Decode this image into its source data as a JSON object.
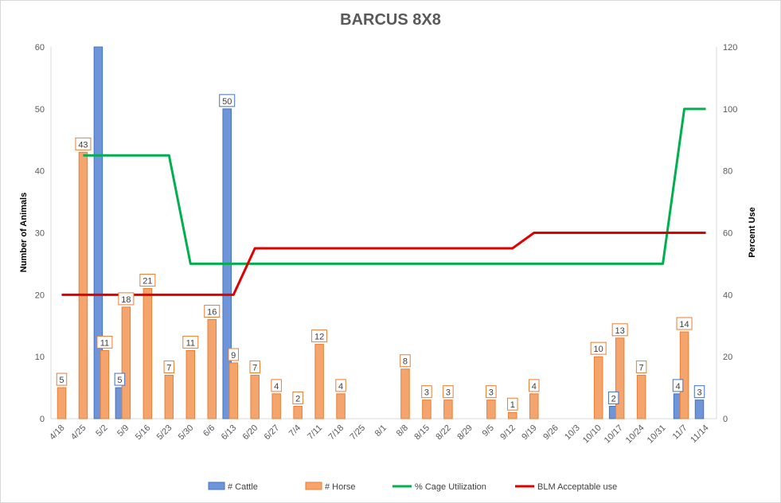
{
  "chart_data": {
    "type": "bar",
    "title": "BARCUS 8X8",
    "ylabel": "Number of Animals",
    "y2label": "Percent Use",
    "ylim": [
      0,
      60
    ],
    "y2lim": [
      0,
      120
    ],
    "yticks": [
      0,
      10,
      20,
      30,
      40,
      50,
      60
    ],
    "y2ticks": [
      0,
      20,
      40,
      60,
      80,
      100,
      120
    ],
    "grid": false,
    "legend_position": "bottom",
    "categories": [
      "4/18",
      "4/25",
      "5/2",
      "5/9",
      "5/16",
      "5/23",
      "5/30",
      "6/6",
      "6/13",
      "6/20",
      "6/27",
      "7/4",
      "7/11",
      "7/18",
      "7/25",
      "8/1",
      "8/8",
      "8/15",
      "8/22",
      "8/29",
      "9/5",
      "9/12",
      "9/19",
      "9/26",
      "10/3",
      "10/10",
      "10/17",
      "10/24",
      "10/31",
      "11/7",
      "11/14"
    ],
    "series": [
      {
        "name": "# Cattle",
        "type": "bar",
        "axis": "left",
        "color": "#4472c4",
        "values": [
          null,
          null,
          60,
          5,
          null,
          null,
          null,
          null,
          50,
          null,
          null,
          null,
          null,
          null,
          null,
          null,
          null,
          null,
          null,
          null,
          null,
          null,
          null,
          null,
          null,
          null,
          2,
          null,
          null,
          4,
          3
        ],
        "labels": [
          null,
          null,
          null,
          "5",
          null,
          null,
          null,
          null,
          "50",
          null,
          null,
          null,
          null,
          null,
          null,
          null,
          null,
          null,
          null,
          null,
          null,
          null,
          null,
          null,
          null,
          null,
          "2",
          null,
          null,
          "4",
          "3"
        ]
      },
      {
        "name": "# Horse",
        "type": "bar",
        "axis": "left",
        "color": "#ed7d31",
        "values": [
          5,
          43,
          11,
          18,
          21,
          7,
          11,
          16,
          9,
          7,
          4,
          2,
          12,
          4,
          null,
          null,
          8,
          3,
          3,
          null,
          3,
          1,
          4,
          null,
          null,
          10,
          13,
          7,
          null,
          14,
          null
        ],
        "labels": [
          "5",
          "43",
          "11",
          "18",
          "21",
          "7",
          "11",
          "16",
          "9",
          "7",
          "4",
          "2",
          "12",
          "4",
          null,
          null,
          "8",
          "3",
          "3",
          null,
          "3",
          "1",
          "4",
          null,
          null,
          "10",
          "13",
          "7",
          null,
          "14",
          null
        ]
      },
      {
        "name": "% Cage Utilization",
        "type": "line",
        "axis": "right",
        "color": "#00b050",
        "values": [
          null,
          85,
          85,
          85,
          85,
          85,
          50,
          50,
          50,
          50,
          50,
          50,
          50,
          50,
          50,
          50,
          50,
          50,
          50,
          50,
          50,
          50,
          50,
          50,
          50,
          50,
          50,
          50,
          50,
          100,
          100
        ]
      },
      {
        "name": "BLM Acceptable use",
        "type": "line",
        "axis": "right",
        "color": "#e00000",
        "values": [
          40,
          40,
          40,
          40,
          40,
          40,
          40,
          40,
          40,
          55,
          55,
          55,
          55,
          55,
          55,
          55,
          55,
          55,
          55,
          55,
          55,
          55,
          60,
          60,
          60,
          60,
          60,
          60,
          60,
          60,
          60
        ]
      }
    ]
  }
}
